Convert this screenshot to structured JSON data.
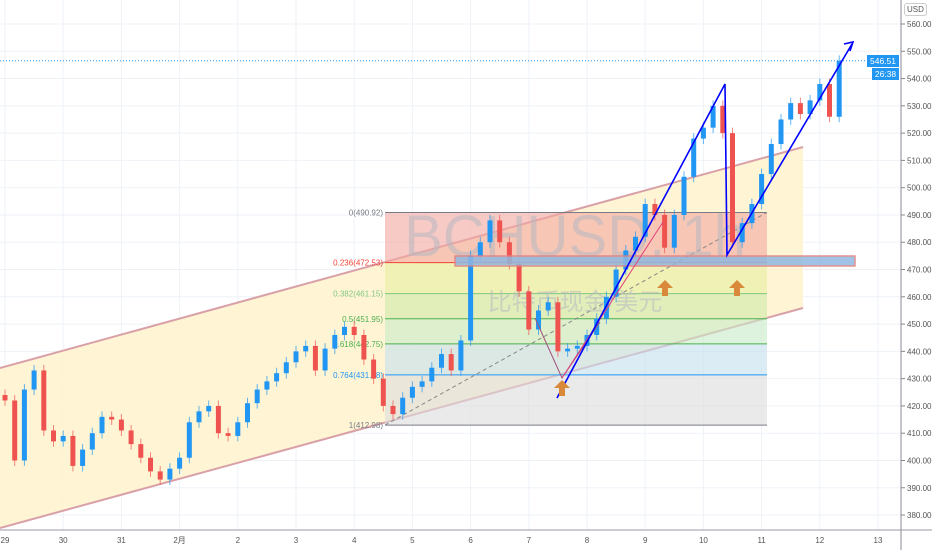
{
  "chart_data": {
    "type": "candlestick",
    "symbol_watermark": "BCHUSD, 1h",
    "description_watermark": "比特币现金/美元",
    "currency": "USD",
    "last_price": "546.51",
    "countdown": "26:38",
    "ylim": [
      375,
      565
    ],
    "y_ticks": [
      "560.00",
      "550.00",
      "540.00",
      "530.00",
      "520.00",
      "510.00",
      "500.00",
      "490.00",
      "480.00",
      "470.00",
      "460.00",
      "450.00",
      "440.00",
      "430.00",
      "420.00",
      "410.00",
      "400.00",
      "390.00",
      "380.00"
    ],
    "x_ticks": [
      "29",
      "30",
      "31",
      "2月",
      "2",
      "3",
      "4",
      "5",
      "6",
      "7",
      "8",
      "9",
      "10",
      "11",
      "12",
      "13"
    ],
    "grid": true,
    "colors": {
      "up": "#2196f3",
      "down": "#ef5350",
      "channel": "#d9a0a8",
      "trend": "#0000ff",
      "arrow": "#d88a3a"
    },
    "closes": [
      422,
      400,
      426,
      433,
      411,
      407,
      409,
      398,
      404,
      410,
      416,
      415,
      411,
      406,
      401,
      396,
      393,
      397,
      401,
      414,
      418,
      420,
      410,
      409,
      414,
      421,
      426,
      429,
      432,
      436,
      440,
      442,
      433,
      441,
      446,
      449,
      446,
      437,
      430,
      420,
      417,
      423,
      427,
      429,
      434,
      439,
      433,
      444,
      475,
      480,
      488,
      480,
      472,
      462,
      448,
      455,
      458,
      440,
      441,
      442,
      446,
      452,
      460,
      470,
      477,
      482,
      494,
      490,
      478,
      490,
      504,
      518,
      522,
      530,
      520,
      480,
      487,
      494,
      505,
      516,
      525,
      531,
      527,
      532,
      538,
      526,
      546.51
    ],
    "fib": [
      {
        "label": "0(490.92)",
        "price": 490.92,
        "color": "#787b86"
      },
      {
        "label": "0.236(472.53)",
        "price": 472.53,
        "color": "#f44336"
      },
      {
        "label": "0.382(461.15)",
        "price": 461.15,
        "color": "#81c784"
      },
      {
        "label": "0.5(451.95)",
        "price": 451.95,
        "color": "#4caf50"
      },
      {
        "label": "0.618(442.75)",
        "price": 442.75,
        "color": "#4caf50"
      },
      {
        "label": "0.764(431.38)",
        "price": 431.38,
        "color": "#2196f3"
      },
      {
        "label": "1(412.98)",
        "price": 412.98,
        "color": "#787b86"
      }
    ]
  }
}
